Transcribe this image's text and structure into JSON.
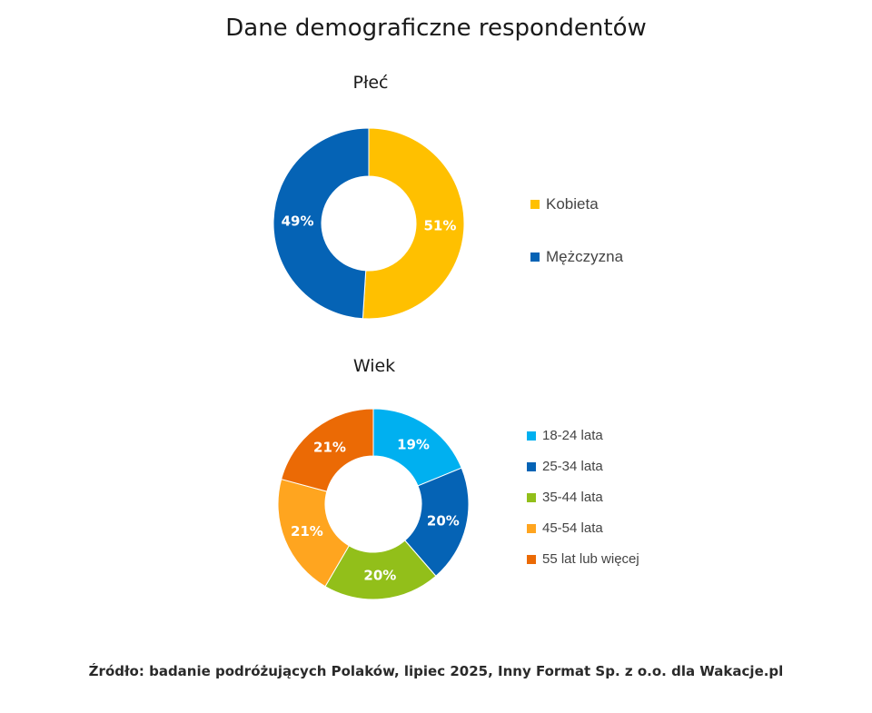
{
  "title": "Dane demograficzne respondentów",
  "footnote": "Źródło: badanie podróżujących Polaków, lipiec 2025, Inny Format Sp. z o.o. dla Wakacje.pl",
  "chart_data": [
    {
      "type": "pie",
      "title": "Płeć",
      "hole": true,
      "legend": "right",
      "categories": [
        "Kobieta",
        "Mężczyzna"
      ],
      "values": [
        51,
        49
      ],
      "labels": [
        "51%",
        "49%"
      ],
      "colors": [
        "#FFC000",
        "#0563B5"
      ]
    },
    {
      "type": "pie",
      "title": "Wiek",
      "hole": true,
      "legend": "right",
      "categories": [
        "18-24 lata",
        "25-34 lata",
        "35-44 lata",
        "45-54 lata",
        "55 lat lub więcej"
      ],
      "values": [
        19,
        20,
        20,
        21,
        21
      ],
      "labels": [
        "19%",
        "20%",
        "20%",
        "21%",
        "21%"
      ],
      "colors": [
        "#00B0F0",
        "#0563B5",
        "#92BF1A",
        "#FFA51F",
        "#EB6A05"
      ]
    }
  ]
}
